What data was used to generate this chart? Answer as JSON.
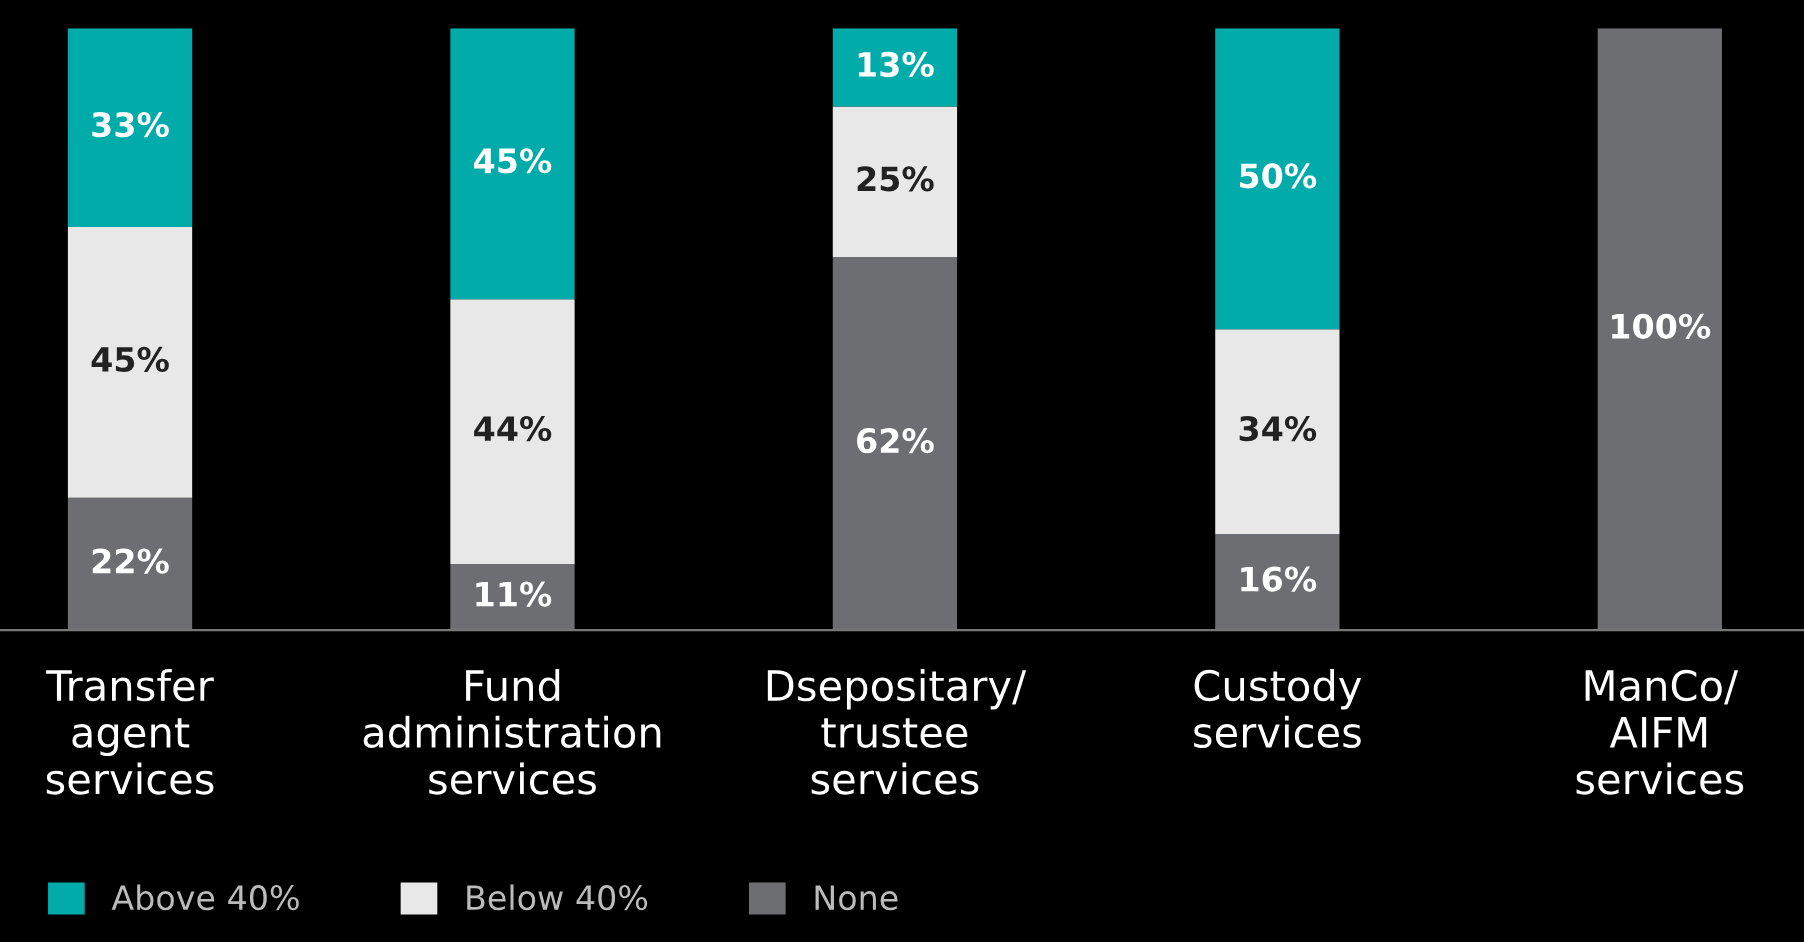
{
  "chart_data": {
    "type": "bar",
    "stacked": true,
    "categories": [
      "Transfer\nagent\nservices",
      "Fund\nadministration\nservices",
      "Dsepositary/\ntrustee\nservices",
      "Custody\nservices",
      "ManCo/\nAIFM\nservices"
    ],
    "series": [
      {
        "name": "None",
        "color": "#6d6e71",
        "values": [
          22,
          11,
          62,
          16,
          100
        ],
        "value_labels": [
          "22%",
          "11%",
          "62%",
          "16%",
          "100%"
        ]
      },
      {
        "name": "Below 40%",
        "color": "#e8e8e8",
        "values": [
          45,
          44,
          25,
          34,
          0
        ],
        "value_labels": [
          "45%",
          "44%",
          "25%",
          "34%",
          null
        ]
      },
      {
        "name": "Above 40%",
        "color": "#00aba9",
        "values": [
          33,
          45,
          13,
          50,
          0
        ],
        "value_labels": [
          "33%",
          "45%",
          "13%",
          "50%",
          null
        ]
      }
    ],
    "ylim": [
      0,
      100
    ],
    "tick_labels": "x",
    "grid": false,
    "legend": "bottom left"
  }
}
